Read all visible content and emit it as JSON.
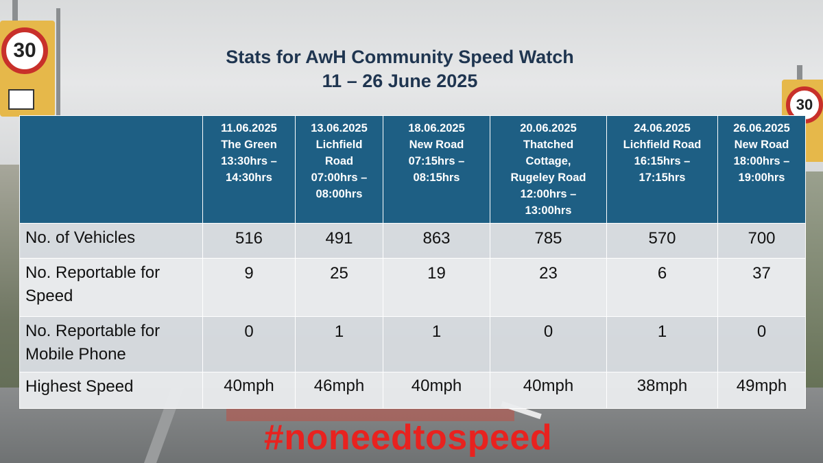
{
  "title": {
    "line1": "Stats for AwH Community Speed Watch",
    "line2": "11 – 26 June 2025"
  },
  "background": {
    "sign_left_limit": "30",
    "sign_right_limit": "30"
  },
  "table": {
    "columns": [
      {
        "lines": [
          "11.06.2025",
          "The Green",
          "13:30hrs –",
          "14:30hrs"
        ]
      },
      {
        "lines": [
          "13.06.2025",
          "Lichfield",
          "Road",
          "07:00hrs –",
          "08:00hrs"
        ]
      },
      {
        "lines": [
          "18.06.2025",
          "New Road",
          "07:15hrs –",
          "08:15hrs"
        ]
      },
      {
        "lines": [
          "20.06.2025",
          "Thatched",
          "Cottage,",
          "Rugeley Road",
          "12:00hrs –",
          "13:00hrs"
        ]
      },
      {
        "lines": [
          "24.06.2025",
          "Lichfield Road",
          "16:15hrs –",
          "17:15hrs"
        ]
      },
      {
        "lines": [
          "26.06.2025",
          "New Road",
          "18:00hrs –",
          "19:00hrs"
        ]
      }
    ],
    "rows": [
      {
        "label_lines": [
          "No. of Vehicles"
        ],
        "values": [
          "516",
          "491",
          "863",
          "785",
          "570",
          "700"
        ]
      },
      {
        "label_lines": [
          "No. Reportable for",
          "Speed"
        ],
        "values": [
          "9",
          "25",
          "19",
          "23",
          "6",
          "37"
        ]
      },
      {
        "label_lines": [
          "No. Reportable for",
          "Mobile Phone"
        ],
        "values": [
          "0",
          "1",
          "1",
          "0",
          "1",
          "0"
        ]
      },
      {
        "label_lines": [
          "Highest Speed"
        ],
        "values": [
          "40mph",
          "46mph",
          "40mph",
          "40mph",
          "38mph",
          "49mph"
        ]
      }
    ]
  },
  "hashtag": "#noneedtospeed",
  "colors": {
    "header_bg": "#1e5f84",
    "title": "#1f3550",
    "hashtag": "#e8221f"
  }
}
